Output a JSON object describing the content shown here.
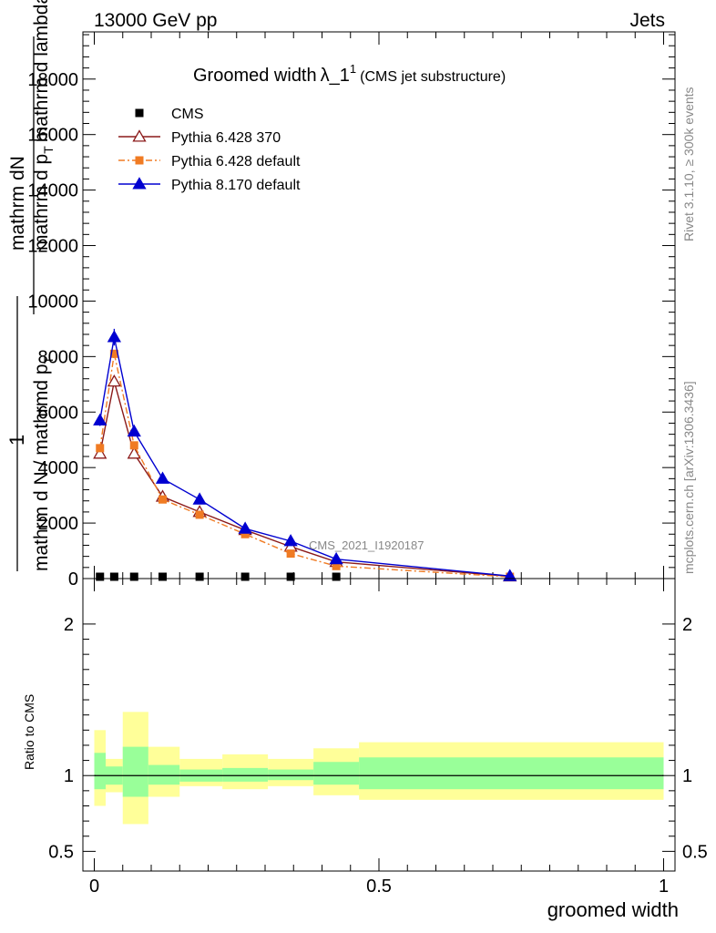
{
  "header": {
    "energy_label": "13000 GeV pp",
    "category_label": "Jets"
  },
  "title": {
    "main": "Groomed width",
    "symbol": "λ_1",
    "superscript": "1",
    "paren": "(CMS jet substructure)"
  },
  "side_labels": {
    "rivet": "Rivet 3.1.10, ≥ 300k events",
    "mcplots": "mcplots.cern.ch [arXiv:1306.3436]"
  },
  "watermark": "CMS_2021_I1920187",
  "ylabel": {
    "one": "1",
    "num_line": "mathrm d",
    "num_frac_top": "mathrm d",
    "N": "N",
    "frac_mid": "mathrm d p",
    "T_sub": "T",
    "frac_tail": "mathrm d lambda",
    "den": "mathrm d N / mathrmd p",
    "den_T": "T"
  },
  "ratio_ylabel": "Ratio to CMS",
  "xlabel": "groomed width",
  "chart_data": [
    {
      "type": "line",
      "panel": "main",
      "xlim": [
        -0.02,
        1.02
      ],
      "ylim": [
        0,
        19700
      ],
      "y_ticks": [
        {
          "v": 0,
          "label": "0"
        },
        {
          "v": 2000,
          "label": "2000"
        },
        {
          "v": 4000,
          "label": "4000"
        },
        {
          "v": 6000,
          "label": "6000"
        },
        {
          "v": 8000,
          "label": "8000"
        },
        {
          "v": 10000,
          "label": "10000"
        },
        {
          "v": 12000,
          "label": "12000"
        },
        {
          "v": 14000,
          "label": "14000"
        },
        {
          "v": 16000,
          "label": "16000"
        },
        {
          "v": 18000,
          "label": "18000"
        }
      ],
      "legend_position": "top-left",
      "series": [
        {
          "name": "CMS",
          "color": "#000000",
          "marker": "square",
          "x": [
            0.01,
            0.035,
            0.07,
            0.12,
            0.185,
            0.265,
            0.345,
            0.425
          ],
          "y": [
            0,
            0,
            0,
            0,
            0,
            0,
            0,
            0
          ]
        },
        {
          "name": "Pythia 6.428 370",
          "color": "#8b1a1a",
          "marker": "triangle-open",
          "dash": "",
          "x": [
            0.01,
            0.035,
            0.07,
            0.12,
            0.185,
            0.265,
            0.345,
            0.425,
            0.73
          ],
          "y": [
            4500,
            7100,
            4500,
            2950,
            2400,
            1750,
            1150,
            600,
            80
          ]
        },
        {
          "name": "Pythia 6.428 default",
          "color": "#f07b23",
          "marker": "square",
          "dash": "7,3,2,3",
          "x": [
            0.01,
            0.035,
            0.07,
            0.12,
            0.185,
            0.265,
            0.345,
            0.425,
            0.73
          ],
          "y": [
            4700,
            8100,
            4800,
            2850,
            2300,
            1600,
            900,
            450,
            60
          ]
        },
        {
          "name": "Pythia 8.170 default",
          "color": "#0000d0",
          "marker": "triangle",
          "dash": "",
          "x": [
            0.01,
            0.035,
            0.07,
            0.12,
            0.185,
            0.265,
            0.345,
            0.425,
            0.73
          ],
          "y": [
            5700,
            8700,
            5300,
            3600,
            2850,
            1800,
            1350,
            700,
            90
          ],
          "yerr": [
            200,
            300,
            0,
            0,
            0,
            0,
            0,
            0,
            0
          ]
        }
      ]
    },
    {
      "type": "area",
      "panel": "ratio",
      "xlim": [
        -0.02,
        1.02
      ],
      "ylim": [
        0.37,
        2.3
      ],
      "y_ticks": [
        {
          "v": 0.5,
          "label": "0.5"
        },
        {
          "v": 1,
          "label": "1"
        },
        {
          "v": 2,
          "label": "2"
        }
      ],
      "x_ticks": [
        {
          "v": 0,
          "label": "0"
        },
        {
          "v": 0.5,
          "label": "0.5"
        },
        {
          "v": 1,
          "label": "1"
        }
      ],
      "bands": [
        {
          "x0": 0.0,
          "x1": 0.02,
          "yellow": [
            0.8,
            1.3
          ],
          "green": [
            0.91,
            1.15
          ]
        },
        {
          "x0": 0.02,
          "x1": 0.05,
          "yellow": [
            0.89,
            1.11
          ],
          "green": [
            0.94,
            1.06
          ]
        },
        {
          "x0": 0.05,
          "x1": 0.095,
          "yellow": [
            0.68,
            1.42
          ],
          "green": [
            0.86,
            1.19
          ]
        },
        {
          "x0": 0.095,
          "x1": 0.15,
          "yellow": [
            0.86,
            1.19
          ],
          "green": [
            0.94,
            1.07
          ]
        },
        {
          "x0": 0.15,
          "x1": 0.225,
          "yellow": [
            0.93,
            1.11
          ],
          "green": [
            0.96,
            1.04
          ]
        },
        {
          "x0": 0.225,
          "x1": 0.305,
          "yellow": [
            0.91,
            1.14
          ],
          "green": [
            0.96,
            1.05
          ]
        },
        {
          "x0": 0.305,
          "x1": 0.385,
          "yellow": [
            0.93,
            1.11
          ],
          "green": [
            0.97,
            1.04
          ]
        },
        {
          "x0": 0.385,
          "x1": 0.465,
          "yellow": [
            0.87,
            1.18
          ],
          "green": [
            0.94,
            1.09
          ]
        },
        {
          "x0": 0.465,
          "x1": 1.0,
          "yellow": [
            0.84,
            1.22
          ],
          "green": [
            0.91,
            1.12
          ]
        }
      ],
      "reference": 1
    }
  ],
  "colors": {
    "band_yellow": "#ffff99",
    "band_green": "#99ff99"
  }
}
